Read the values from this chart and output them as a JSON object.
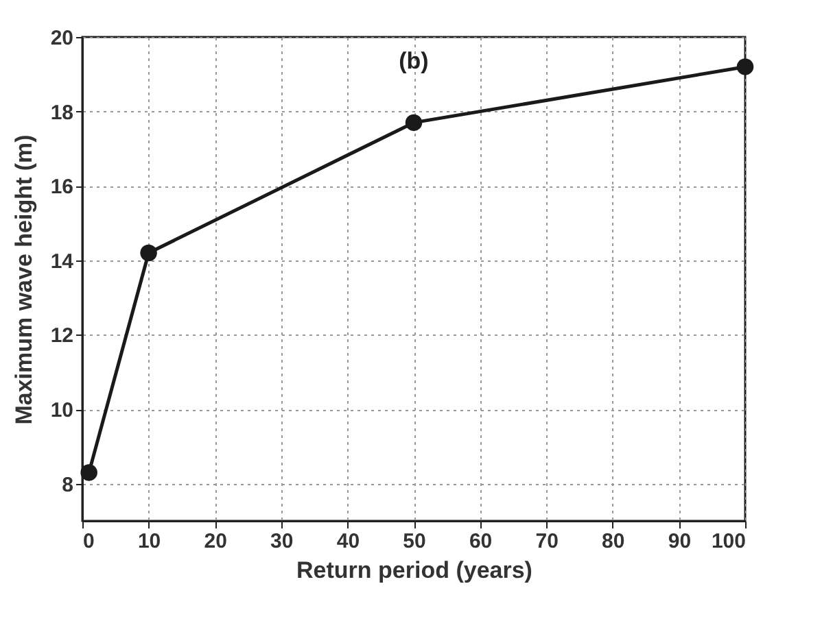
{
  "chart_data": {
    "type": "line",
    "xlabel": "Return period (years)",
    "ylabel": "Maximum wave height (m)",
    "annotations": [
      "(b)"
    ],
    "x": [
      1,
      10,
      50,
      100
    ],
    "series": [
      {
        "color": "#1a1a1a",
        "values": [
          8.3,
          14.2,
          17.7,
          19.2
        ]
      }
    ],
    "xlim": [
      0,
      100
    ],
    "xticks": [
      0,
      10,
      20,
      30,
      40,
      50,
      60,
      70,
      80,
      90,
      100
    ],
    "ylim": [
      7,
      20
    ],
    "yticks": [
      8,
      10,
      12,
      14,
      16,
      18,
      20
    ],
    "grid": true,
    "marker": "circle",
    "line_style": "solid",
    "legend": false
  }
}
